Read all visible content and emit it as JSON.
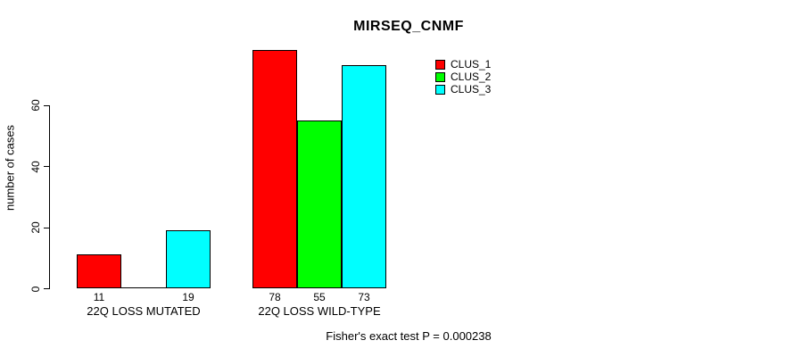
{
  "title": "MIRSEQ_CNMF",
  "footer_note": "Fisher's exact test P = 0.000238",
  "colors": {
    "clus_1": "#FF0000",
    "clus_2": "#00FF00",
    "clus_3": "#00FFFF",
    "axis": "#000000",
    "background": "#FFFFFF"
  },
  "chart_data": {
    "type": "bar",
    "grouped": true,
    "title": "MIRSEQ_CNMF",
    "xlabel": "",
    "ylabel": "number of cases",
    "categories": [
      "22Q LOSS MUTATED",
      "22Q LOSS WILD-TYPE"
    ],
    "series": [
      {
        "name": "CLUS_1",
        "color": "#FF0000",
        "values": [
          11,
          78
        ]
      },
      {
        "name": "CLUS_2",
        "color": "#00FF00",
        "values": [
          0,
          55
        ]
      },
      {
        "name": "CLUS_3",
        "color": "#00FFFF",
        "values": [
          19,
          73
        ]
      }
    ],
    "bar_value_labels_shown": [
      "11",
      "19",
      "78",
      "55",
      "73"
    ],
    "zero_bars_hidden": true,
    "ylim": [
      0,
      79
    ],
    "yticks": [
      0,
      20,
      40,
      60
    ],
    "grid": false,
    "legend_position": "top-right",
    "legend_boxed": false,
    "annotations": [
      "Fisher's exact test P = 0.000238"
    ]
  }
}
